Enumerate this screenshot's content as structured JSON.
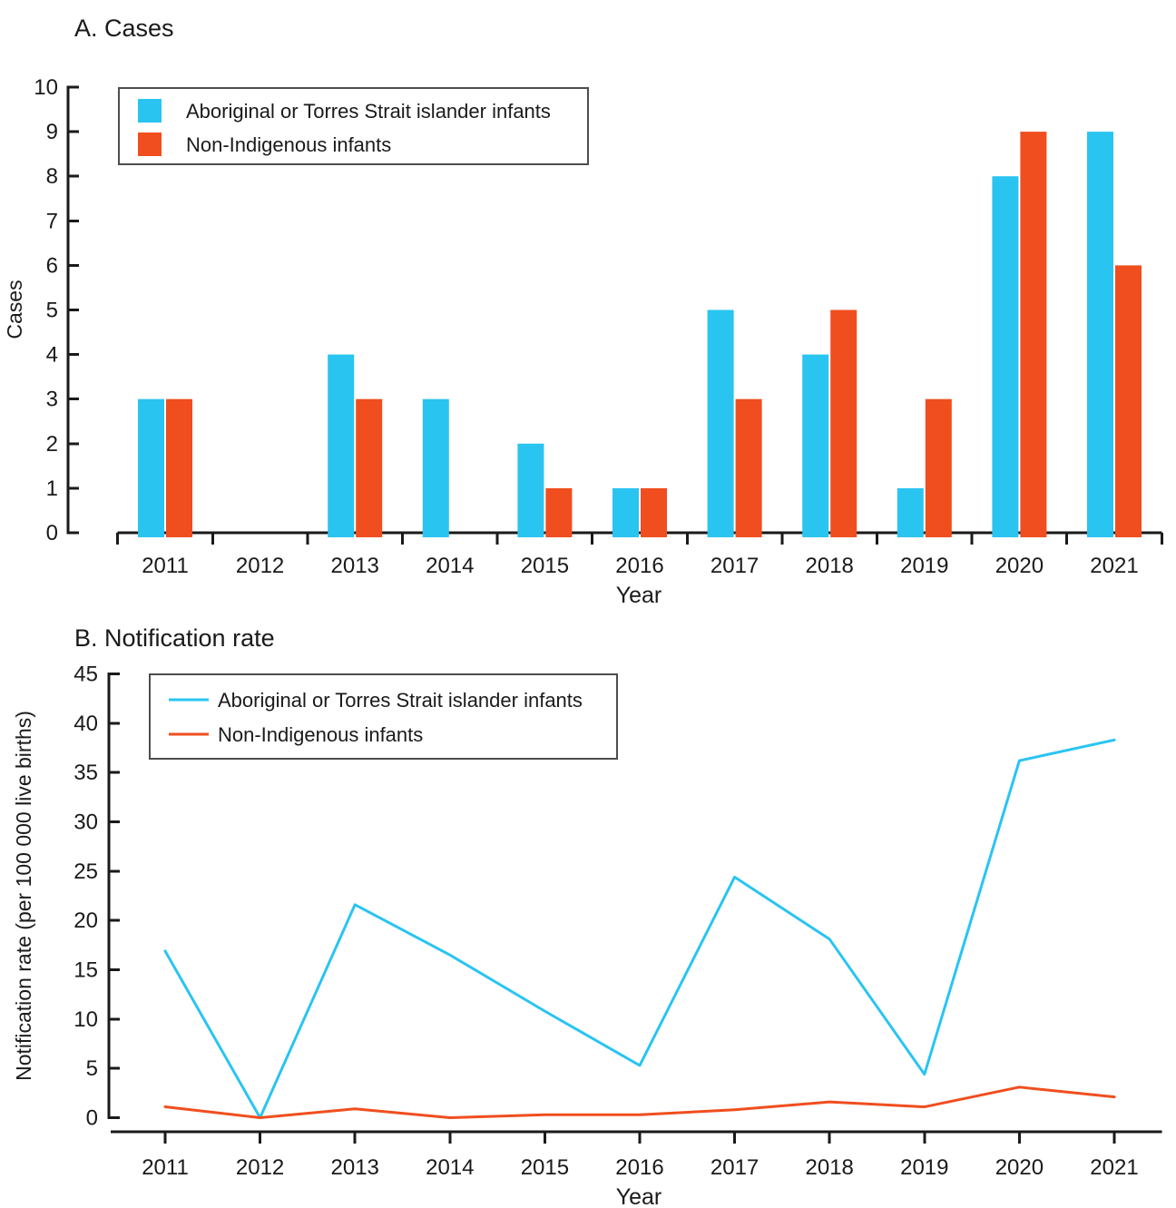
{
  "figure": {
    "background": "#ffffff",
    "text_color": "#1a1a1a",
    "axis_color": "#1a1a1a",
    "legend_border_color": "#4d4d4d"
  },
  "colors": {
    "indigenous": "#2ac4f1",
    "non_indigenous": "#f04e1f"
  },
  "chart_data": [
    {
      "type": "bar",
      "title": "A. Cases",
      "xlabel": "Year",
      "ylabel": "Cases",
      "categories": [
        "2011",
        "2012",
        "2013",
        "2014",
        "2015",
        "2016",
        "2017",
        "2018",
        "2019",
        "2020",
        "2021"
      ],
      "series": [
        {
          "name": "Aboriginal or Torres Strait islander infants",
          "color": "#2ac4f1",
          "values": [
            3,
            0,
            4,
            3,
            2,
            1,
            5,
            4,
            1,
            8,
            9
          ]
        },
        {
          "name": "Non-Indigenous infants",
          "color": "#f04e1f",
          "values": [
            3,
            0,
            3,
            0,
            1,
            1,
            3,
            5,
            3,
            9,
            6
          ]
        }
      ],
      "ylim": [
        0,
        10
      ],
      "yticks": [
        "0",
        "1",
        "2",
        "3",
        "4",
        "5",
        "6",
        "7",
        "8",
        "9",
        "10"
      ],
      "grid": false,
      "legend_position": "top-left"
    },
    {
      "type": "line",
      "title": "B. Notification rate",
      "xlabel": "Year",
      "ylabel": "Notification rate (per 100 000 live births)",
      "categories": [
        "2011",
        "2012",
        "2013",
        "2014",
        "2015",
        "2016",
        "2017",
        "2018",
        "2019",
        "2020",
        "2021"
      ],
      "series": [
        {
          "name": "Aboriginal or Torres Strait islander infants",
          "color": "#2ac4f1",
          "values": [
            16.9,
            0,
            21.6,
            16.5,
            10.8,
            5.3,
            24.4,
            18.1,
            4.4,
            36.2,
            38.3
          ]
        },
        {
          "name": "Non-Indigenous infants",
          "color": "#f04e1f",
          "values": [
            1.1,
            0,
            0.9,
            0,
            0.3,
            0.3,
            0.8,
            1.6,
            1.1,
            3.1,
            2.1
          ]
        }
      ],
      "ylim": [
        0,
        45
      ],
      "yticks": [
        "0",
        "5",
        "10",
        "15",
        "20",
        "25",
        "30",
        "35",
        "40",
        "45"
      ],
      "grid": false,
      "legend_position": "top-left"
    }
  ]
}
